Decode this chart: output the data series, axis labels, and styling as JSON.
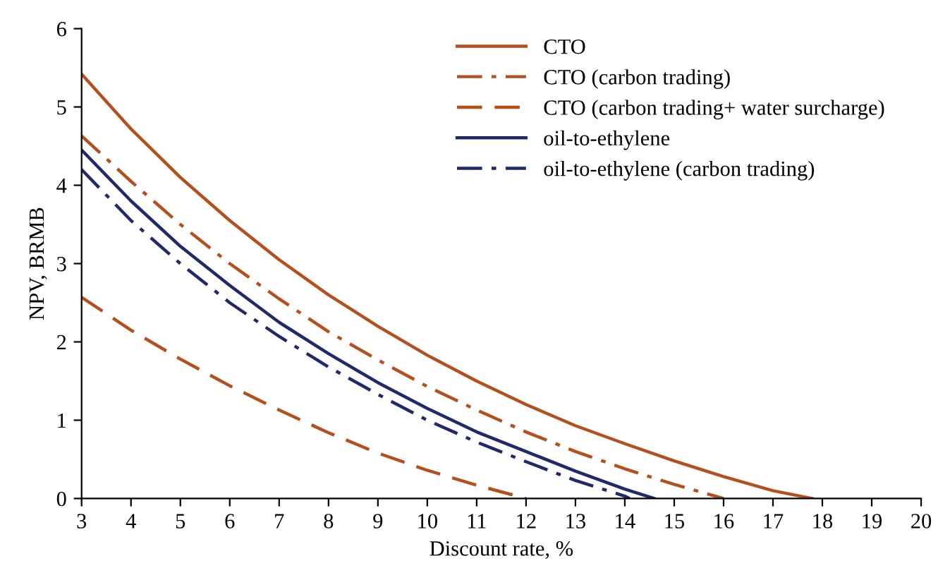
{
  "chart_data": {
    "type": "line",
    "xlabel": "Discount rate, %",
    "ylabel": "NPV, BRMB",
    "xlim": [
      3,
      20
    ],
    "ylim": [
      0,
      6
    ],
    "xticks": [
      3,
      4,
      5,
      6,
      7,
      8,
      9,
      10,
      11,
      12,
      13,
      14,
      15,
      16,
      17,
      18,
      19,
      20
    ],
    "yticks": [
      0,
      1,
      2,
      3,
      4,
      5,
      6
    ],
    "grid": false,
    "legend": "top right",
    "marker": "none",
    "series": [
      {
        "name": "CTO",
        "color": "#b5501e",
        "line_style": "solid",
        "x": [
          3,
          4,
          5,
          6,
          7,
          8,
          9,
          10,
          11,
          12,
          13,
          14,
          15,
          16,
          17,
          17.8
        ],
        "values": [
          5.42,
          4.72,
          4.1,
          3.55,
          3.05,
          2.6,
          2.2,
          1.83,
          1.5,
          1.2,
          0.93,
          0.7,
          0.48,
          0.28,
          0.1,
          0
        ]
      },
      {
        "name": "CTO (carbon trading)",
        "color": "#b5501e",
        "line_style": "dashdot",
        "x": [
          3,
          4,
          5,
          6,
          7,
          8,
          9,
          10,
          11,
          12,
          13,
          14,
          15,
          16
        ],
        "values": [
          4.63,
          4.05,
          3.5,
          3.0,
          2.55,
          2.13,
          1.77,
          1.43,
          1.13,
          0.85,
          0.6,
          0.38,
          0.18,
          0
        ]
      },
      {
        "name": "CTO (carbon trading+ water surcharge)",
        "color": "#b5501e",
        "line_style": "dashed",
        "x": [
          3,
          4,
          5,
          6,
          7,
          8,
          9,
          10,
          11,
          12
        ],
        "values": [
          2.57,
          2.15,
          1.78,
          1.44,
          1.13,
          0.84,
          0.58,
          0.36,
          0.17,
          0
        ]
      },
      {
        "name": "oil-to-ethylene",
        "color": "#1f2a6b",
        "line_style": "solid",
        "x": [
          3,
          4,
          5,
          6,
          7,
          8,
          9,
          10,
          11,
          12,
          13,
          14,
          14.6
        ],
        "values": [
          4.45,
          3.8,
          3.22,
          2.72,
          2.25,
          1.85,
          1.48,
          1.15,
          0.85,
          0.6,
          0.35,
          0.12,
          0
        ]
      },
      {
        "name": "oil-to-ethylene (carbon trading)",
        "color": "#1f2a6b",
        "line_style": "dashdot",
        "x": [
          3,
          4,
          5,
          6,
          7,
          8,
          9,
          10,
          11,
          12,
          13,
          14,
          14.1
        ],
        "values": [
          4.2,
          3.55,
          3.0,
          2.5,
          2.07,
          1.68,
          1.33,
          1.0,
          0.72,
          0.47,
          0.23,
          0.03,
          0
        ]
      }
    ]
  }
}
